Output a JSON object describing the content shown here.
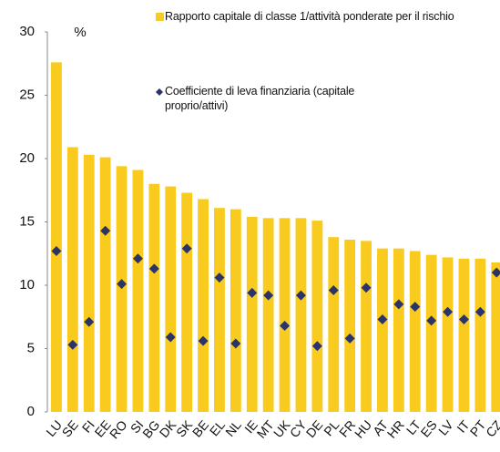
{
  "chart_data": {
    "type": "bar_scatter",
    "y_label": "%",
    "categories": [
      "LU",
      "SE",
      "FI",
      "EE",
      "RO",
      "SI",
      "BG",
      "DK",
      "SK",
      "BE",
      "EL",
      "NL",
      "IE",
      "MT",
      "UK",
      "CY",
      "DE",
      "PL",
      "FR",
      "HU",
      "AT",
      "HR",
      "LT",
      "ES",
      "LV",
      "IT",
      "PT",
      "CZ"
    ],
    "series": [
      {
        "name": "Rapporto capitale di classe 1/attività ponderate per il rischio",
        "color": "#f9cb1f",
        "kind": "bar",
        "values": [
          27.6,
          20.9,
          20.3,
          20.1,
          19.4,
          19.1,
          18.0,
          17.8,
          17.3,
          16.8,
          16.1,
          16.0,
          15.4,
          15.3,
          15.3,
          15.3,
          15.1,
          13.8,
          13.6,
          13.5,
          12.9,
          12.9,
          12.7,
          12.4,
          12.2,
          12.1,
          12.1,
          11.8
        ]
      },
      {
        "name": "Coefficiente di leva finanziaria (capitale proprio/attivi)",
        "color": "#2b3468",
        "kind": "diamond",
        "values": [
          12.7,
          5.3,
          7.1,
          14.3,
          10.1,
          12.1,
          11.3,
          5.9,
          12.9,
          5.6,
          10.6,
          5.4,
          9.4,
          9.2,
          6.8,
          9.2,
          5.2,
          9.6,
          5.8,
          9.8,
          7.3,
          8.5,
          8.3,
          7.2,
          7.9,
          7.3,
          7.9,
          11.0
        ]
      }
    ],
    "ylim": [
      0,
      30
    ],
    "yticks": [
      0,
      5,
      10,
      15,
      20,
      25,
      30
    ]
  }
}
